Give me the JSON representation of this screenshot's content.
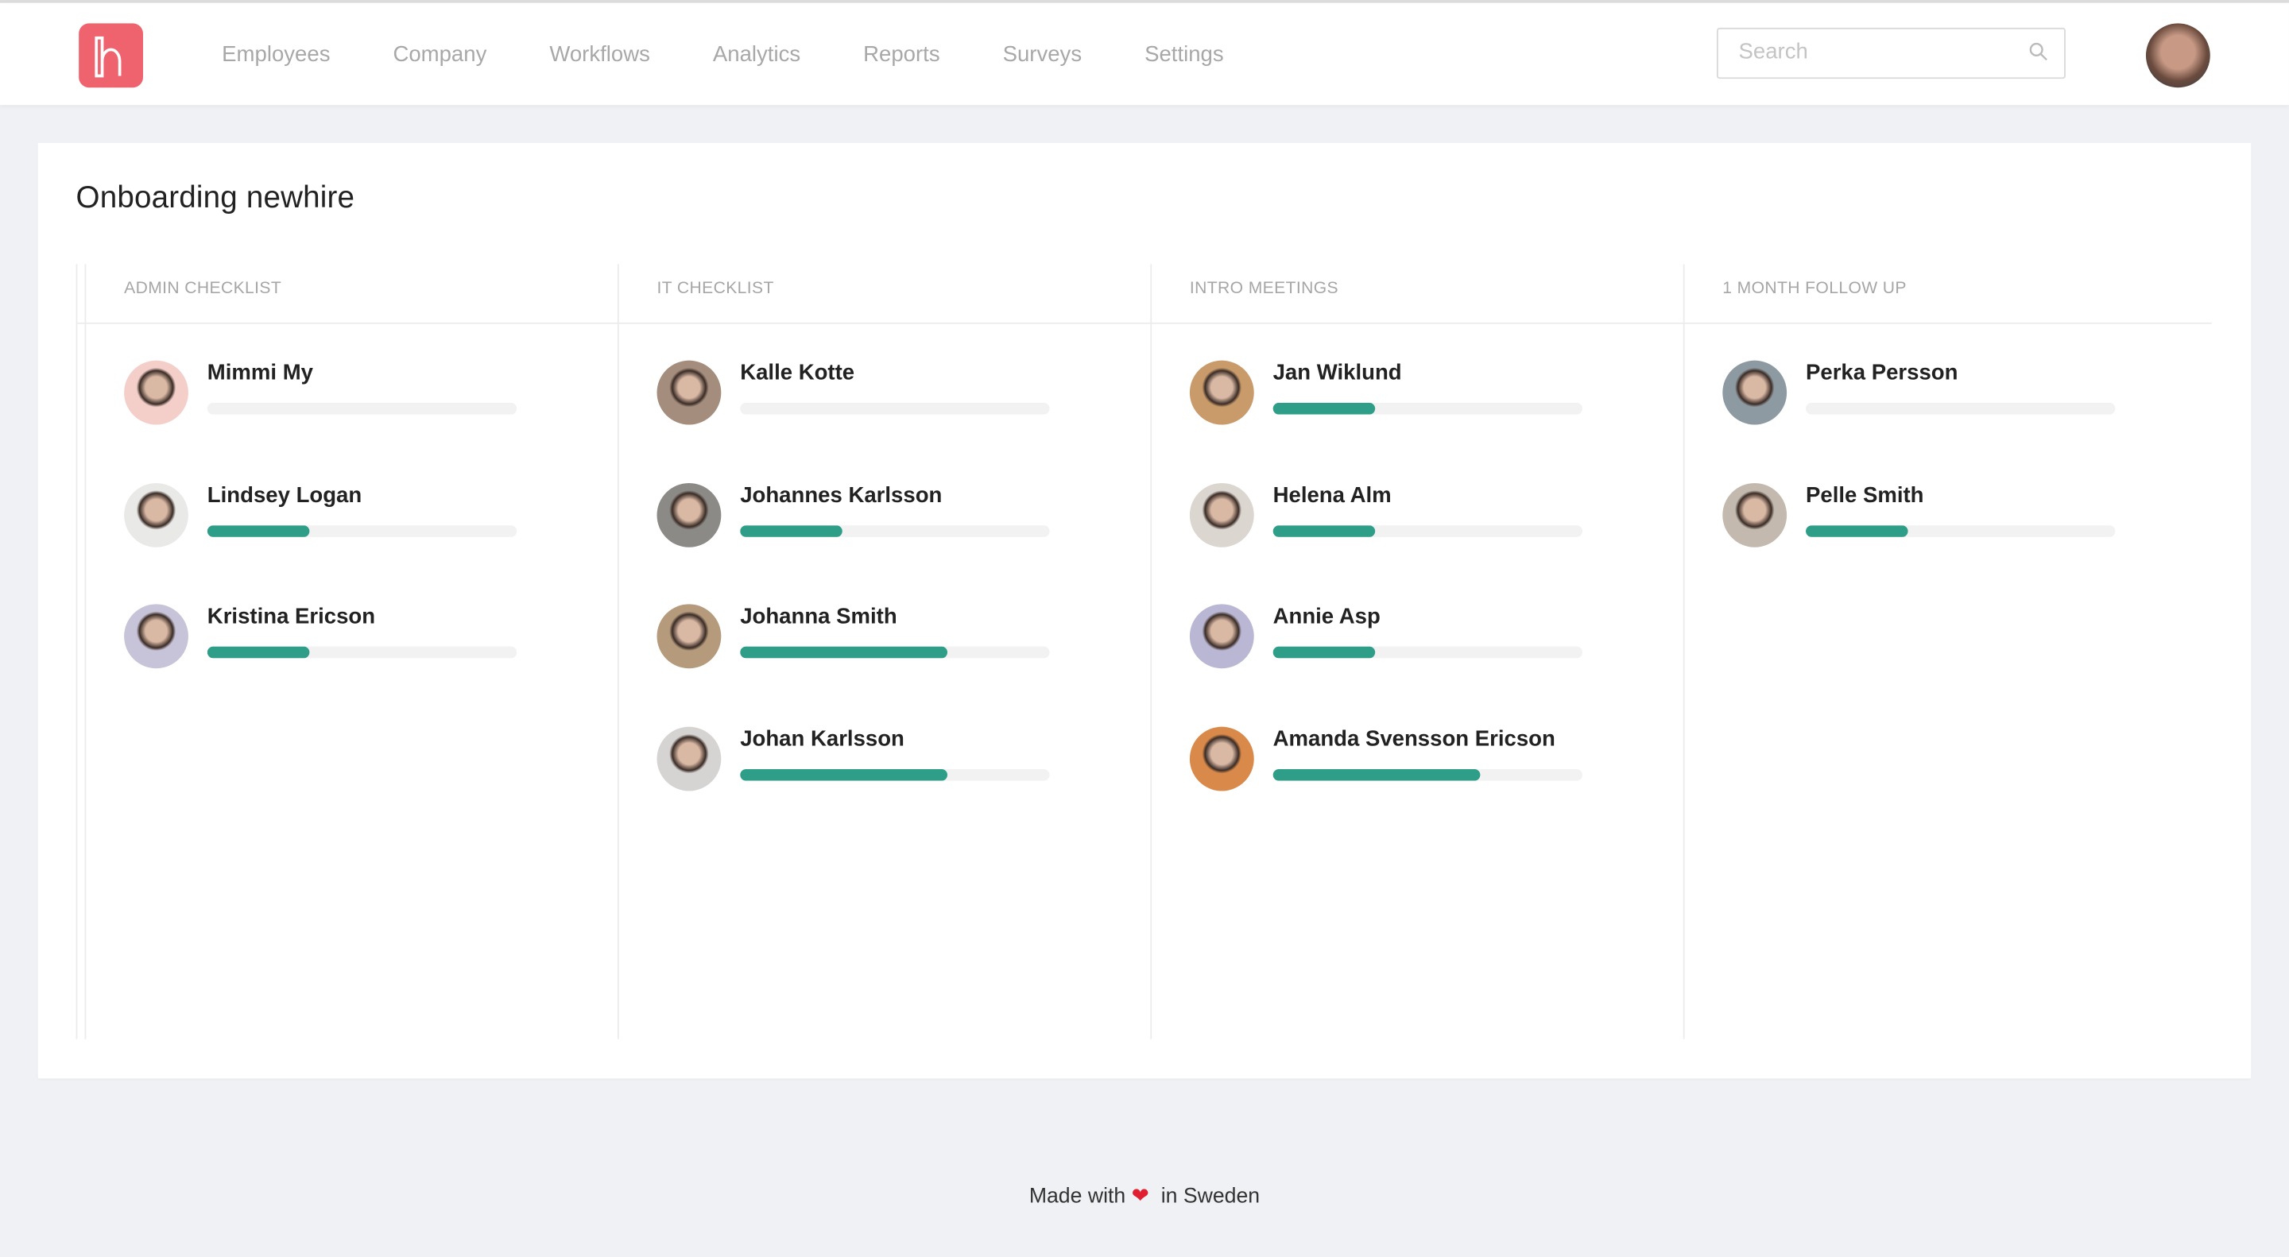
{
  "nav": {
    "logo_label": "h",
    "items": [
      "Employees",
      "Company",
      "Workflows",
      "Analytics",
      "Reports",
      "Surveys",
      "Settings"
    ],
    "search_placeholder": "Search",
    "search_icon": "search-icon",
    "user_avatar": "user-avatar"
  },
  "colors": {
    "brand": "#ef636e",
    "progress": "#2f9e88",
    "track": "#f2f2f2"
  },
  "page": {
    "title": "Onboarding newhire",
    "columns": [
      {
        "title": "ADMIN CHECKLIST",
        "people": [
          {
            "name": "Mimmi My",
            "progress": 0,
            "avatar": "#f4cfc9"
          },
          {
            "name": "Lindsey Logan",
            "progress": 33,
            "avatar": "#e9e9e7"
          },
          {
            "name": "Kristina Ericson",
            "progress": 33,
            "avatar": "#c7c3d8"
          }
        ]
      },
      {
        "title": "IT CHECKLIST",
        "people": [
          {
            "name": "Kalle Kotte",
            "progress": 0,
            "avatar": "#a58d7d"
          },
          {
            "name": "Johannes Karlsson",
            "progress": 33,
            "avatar": "#8c8a86"
          },
          {
            "name": "Johanna Smith",
            "progress": 67,
            "avatar": "#b59a7c"
          },
          {
            "name": "Johan Karlsson",
            "progress": 67,
            "avatar": "#d6d4d2"
          }
        ]
      },
      {
        "title": "INTRO MEETINGS",
        "people": [
          {
            "name": "Jan Wiklund",
            "progress": 33,
            "avatar": "#c99a6a"
          },
          {
            "name": "Helena Alm",
            "progress": 33,
            "avatar": "#dcd6d0"
          },
          {
            "name": "Annie Asp",
            "progress": 33,
            "avatar": "#b9b7d4"
          },
          {
            "name": "Amanda Svensson Ericson",
            "progress": 67,
            "avatar": "#d98a4a"
          }
        ]
      },
      {
        "title": "1 MONTH FOLLOW UP",
        "people": [
          {
            "name": "Perka Persson",
            "progress": 0,
            "avatar": "#8e9aa2"
          },
          {
            "name": "Pelle Smith",
            "progress": 33,
            "avatar": "#c3b9ae"
          }
        ]
      }
    ]
  },
  "footer": {
    "before": "Made with",
    "heart": "❤",
    "after": "in Sweden"
  }
}
